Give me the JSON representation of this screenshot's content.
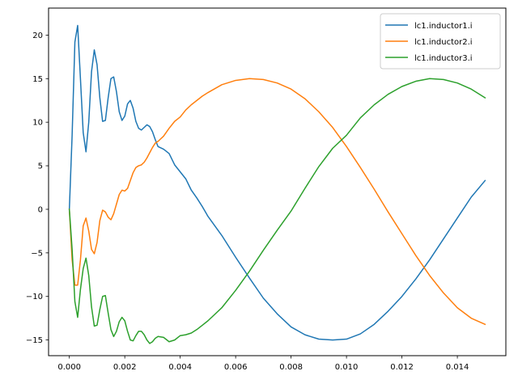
{
  "chart_data": {
    "type": "line",
    "title": "",
    "xlabel": "",
    "ylabel": "",
    "xlim": [
      -0.00075,
      0.01575
    ],
    "ylim": [
      -16.8,
      23.1
    ],
    "x_ticks": [
      0.0,
      0.002,
      0.004,
      0.006,
      0.008,
      0.01,
      0.012,
      0.014
    ],
    "x_tick_labels": [
      "0.000",
      "0.002",
      "0.004",
      "0.006",
      "0.008",
      "0.010",
      "0.012",
      "0.014"
    ],
    "y_ticks": [
      -15,
      -10,
      -5,
      0,
      5,
      10,
      15,
      20
    ],
    "y_tick_labels": [
      "−15",
      "−10",
      "−5",
      "0",
      "5",
      "10",
      "15",
      "20"
    ],
    "grid": false,
    "legend_position": "top-right",
    "series": [
      {
        "name": "lc1.inductor1.i",
        "color": "#1f77b4",
        "points": [
          [
            0.0,
            0.0
          ],
          [
            0.0001,
            8.5
          ],
          [
            0.0002,
            19.2
          ],
          [
            0.0003,
            21.1
          ],
          [
            0.0004,
            15.0
          ],
          [
            0.0005,
            8.8
          ],
          [
            0.0006,
            6.6
          ],
          [
            0.0007,
            10.0
          ],
          [
            0.0008,
            15.8
          ],
          [
            0.0009,
            18.3
          ],
          [
            0.001,
            16.6
          ],
          [
            0.0011,
            12.8
          ],
          [
            0.0012,
            10.1
          ],
          [
            0.0013,
            10.2
          ],
          [
            0.0014,
            12.8
          ],
          [
            0.0015,
            15.0
          ],
          [
            0.0016,
            15.2
          ],
          [
            0.0017,
            13.5
          ],
          [
            0.0018,
            11.2
          ],
          [
            0.0019,
            10.2
          ],
          [
            0.002,
            10.7
          ],
          [
            0.0021,
            12.1
          ],
          [
            0.0022,
            12.5
          ],
          [
            0.0023,
            11.6
          ],
          [
            0.0024,
            10.1
          ],
          [
            0.0025,
            9.3
          ],
          [
            0.0026,
            9.1
          ],
          [
            0.0027,
            9.4
          ],
          [
            0.0028,
            9.7
          ],
          [
            0.0029,
            9.5
          ],
          [
            0.003,
            8.9
          ],
          [
            0.0031,
            8.0
          ],
          [
            0.0032,
            7.2
          ],
          [
            0.0034,
            6.9
          ],
          [
            0.0036,
            6.4
          ],
          [
            0.0038,
            5.1
          ],
          [
            0.004,
            4.3
          ],
          [
            0.0042,
            3.5
          ],
          [
            0.0044,
            2.2
          ],
          [
            0.0046,
            1.3
          ],
          [
            0.0048,
            0.3
          ],
          [
            0.005,
            -0.8
          ],
          [
            0.0055,
            -3.0
          ],
          [
            0.006,
            -5.5
          ],
          [
            0.0065,
            -7.9
          ],
          [
            0.007,
            -10.2
          ],
          [
            0.0075,
            -12.0
          ],
          [
            0.008,
            -13.5
          ],
          [
            0.0085,
            -14.4
          ],
          [
            0.009,
            -14.9
          ],
          [
            0.0095,
            -15.0
          ],
          [
            0.01,
            -14.9
          ],
          [
            0.0105,
            -14.3
          ],
          [
            0.011,
            -13.2
          ],
          [
            0.0115,
            -11.7
          ],
          [
            0.012,
            -10.0
          ],
          [
            0.0125,
            -8.0
          ],
          [
            0.013,
            -5.8
          ],
          [
            0.0135,
            -3.4
          ],
          [
            0.014,
            -1.0
          ],
          [
            0.0145,
            1.4
          ],
          [
            0.015,
            3.3
          ]
        ]
      },
      {
        "name": "lc1.inductor2.i",
        "color": "#ff7f0e",
        "points": [
          [
            0.0,
            0.0
          ],
          [
            0.0001,
            -5.8
          ],
          [
            0.0002,
            -8.7
          ],
          [
            0.0003,
            -8.7
          ],
          [
            0.0004,
            -5.8
          ],
          [
            0.0005,
            -1.9
          ],
          [
            0.0006,
            -1.0
          ],
          [
            0.0007,
            -2.5
          ],
          [
            0.0008,
            -4.6
          ],
          [
            0.0009,
            -5.1
          ],
          [
            0.001,
            -3.8
          ],
          [
            0.0011,
            -1.3
          ],
          [
            0.0012,
            -0.1
          ],
          [
            0.0013,
            -0.3
          ],
          [
            0.0014,
            -0.9
          ],
          [
            0.0015,
            -1.2
          ],
          [
            0.0016,
            -0.5
          ],
          [
            0.0017,
            0.6
          ],
          [
            0.0018,
            1.7
          ],
          [
            0.0019,
            2.2
          ],
          [
            0.002,
            2.1
          ],
          [
            0.0021,
            2.4
          ],
          [
            0.0022,
            3.3
          ],
          [
            0.0023,
            4.2
          ],
          [
            0.0024,
            4.8
          ],
          [
            0.0025,
            5.0
          ],
          [
            0.0026,
            5.1
          ],
          [
            0.0027,
            5.4
          ],
          [
            0.0028,
            5.9
          ],
          [
            0.0029,
            6.5
          ],
          [
            0.003,
            7.1
          ],
          [
            0.0031,
            7.6
          ],
          [
            0.0032,
            7.8
          ],
          [
            0.0034,
            8.4
          ],
          [
            0.0036,
            9.3
          ],
          [
            0.0038,
            10.1
          ],
          [
            0.004,
            10.6
          ],
          [
            0.0042,
            11.4
          ],
          [
            0.0044,
            12.0
          ],
          [
            0.0046,
            12.5
          ],
          [
            0.0048,
            13.0
          ],
          [
            0.005,
            13.4
          ],
          [
            0.0055,
            14.3
          ],
          [
            0.006,
            14.8
          ],
          [
            0.0065,
            15.0
          ],
          [
            0.007,
            14.9
          ],
          [
            0.0075,
            14.5
          ],
          [
            0.008,
            13.8
          ],
          [
            0.0085,
            12.7
          ],
          [
            0.009,
            11.2
          ],
          [
            0.0095,
            9.4
          ],
          [
            0.01,
            7.2
          ],
          [
            0.0105,
            4.8
          ],
          [
            0.011,
            2.3
          ],
          [
            0.0115,
            -0.3
          ],
          [
            0.012,
            -2.8
          ],
          [
            0.0125,
            -5.3
          ],
          [
            0.013,
            -7.6
          ],
          [
            0.0135,
            -9.6
          ],
          [
            0.014,
            -11.3
          ],
          [
            0.0145,
            -12.5
          ],
          [
            0.015,
            -13.2
          ]
        ]
      },
      {
        "name": "lc1.inductor3.i",
        "color": "#2ca02c",
        "points": [
          [
            0.0,
            0.0
          ],
          [
            0.0001,
            -4.6
          ],
          [
            0.0002,
            -10.6
          ],
          [
            0.0003,
            -12.4
          ],
          [
            0.0004,
            -9.2
          ],
          [
            0.0005,
            -6.8
          ],
          [
            0.0006,
            -5.6
          ],
          [
            0.0007,
            -7.6
          ],
          [
            0.0008,
            -11.2
          ],
          [
            0.0009,
            -13.4
          ],
          [
            0.001,
            -13.3
          ],
          [
            0.0011,
            -11.5
          ],
          [
            0.0012,
            -10.0
          ],
          [
            0.0013,
            -9.9
          ],
          [
            0.0014,
            -11.9
          ],
          [
            0.0015,
            -13.8
          ],
          [
            0.0016,
            -14.6
          ],
          [
            0.0017,
            -14.0
          ],
          [
            0.0018,
            -12.9
          ],
          [
            0.0019,
            -12.4
          ],
          [
            0.002,
            -12.8
          ],
          [
            0.0021,
            -14.0
          ],
          [
            0.0022,
            -15.0
          ],
          [
            0.0023,
            -15.1
          ],
          [
            0.0024,
            -14.5
          ],
          [
            0.0025,
            -14.0
          ],
          [
            0.0026,
            -14.0
          ],
          [
            0.0027,
            -14.4
          ],
          [
            0.0028,
            -15.0
          ],
          [
            0.0029,
            -15.4
          ],
          [
            0.003,
            -15.2
          ],
          [
            0.0031,
            -14.8
          ],
          [
            0.0032,
            -14.6
          ],
          [
            0.0034,
            -14.7
          ],
          [
            0.0036,
            -15.2
          ],
          [
            0.0038,
            -15.0
          ],
          [
            0.004,
            -14.5
          ],
          [
            0.0042,
            -14.4
          ],
          [
            0.0044,
            -14.2
          ],
          [
            0.0046,
            -13.8
          ],
          [
            0.0048,
            -13.3
          ],
          [
            0.005,
            -12.8
          ],
          [
            0.0055,
            -11.3
          ],
          [
            0.006,
            -9.3
          ],
          [
            0.0065,
            -7.1
          ],
          [
            0.007,
            -4.7
          ],
          [
            0.0075,
            -2.4
          ],
          [
            0.008,
            -0.2
          ],
          [
            0.0085,
            2.4
          ],
          [
            0.009,
            4.9
          ],
          [
            0.0095,
            7.0
          ],
          [
            0.01,
            8.5
          ],
          [
            0.0105,
            10.5
          ],
          [
            0.011,
            12.0
          ],
          [
            0.0115,
            13.2
          ],
          [
            0.012,
            14.1
          ],
          [
            0.0125,
            14.7
          ],
          [
            0.013,
            15.0
          ],
          [
            0.0135,
            14.9
          ],
          [
            0.014,
            14.5
          ],
          [
            0.0145,
            13.8
          ],
          [
            0.015,
            12.8
          ]
        ]
      }
    ]
  }
}
